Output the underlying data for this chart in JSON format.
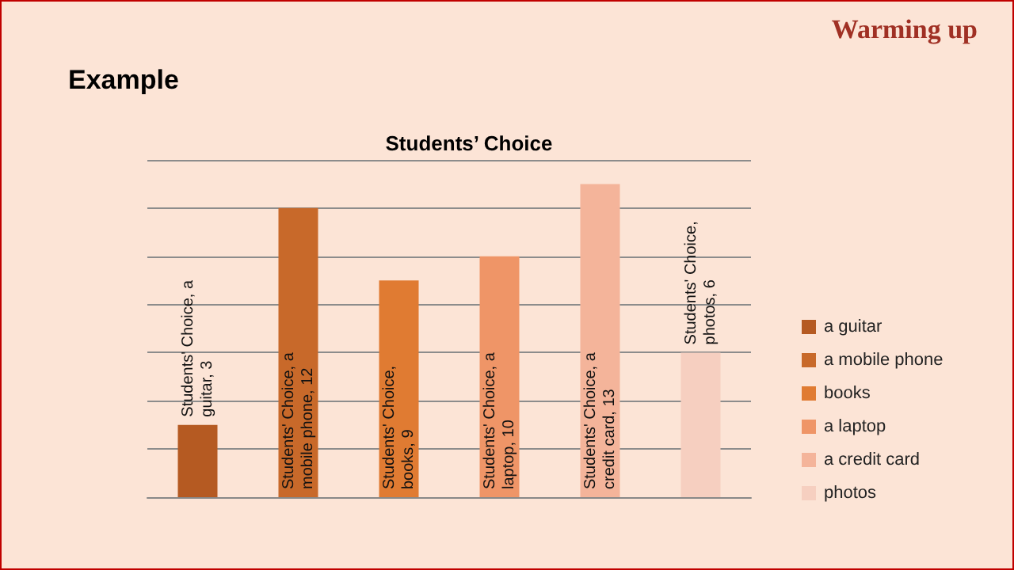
{
  "chart_data": {
    "type": "bar",
    "title": "Students’ Choice",
    "annotations": [
      "Warming up",
      "Example"
    ],
    "categories": [
      null,
      null,
      null,
      null,
      null,
      null
    ],
    "series": [
      {
        "name": "a guitar",
        "color": "#b55a22",
        "values": [
          3,
          null,
          null,
          null,
          null,
          null
        ],
        "value_labels": [
          "Students' Choice, a guitar, 3",
          null,
          null,
          null,
          null,
          null
        ]
      },
      {
        "name": "a mobile phone",
        "color": "#c8692a",
        "values": [
          null,
          12,
          null,
          null,
          null,
          null
        ],
        "value_labels": [
          null,
          "Students' Choice, a mobile phone, 12",
          null,
          null,
          null,
          null
        ]
      },
      {
        "name": "books",
        "color": "#e07b32",
        "values": [
          null,
          null,
          9,
          null,
          null,
          null
        ],
        "value_labels": [
          null,
          null,
          "Students' Choice, books, 9",
          null,
          null,
          null
        ]
      },
      {
        "name": "a laptop",
        "color": "#ef9567",
        "values": [
          null,
          null,
          null,
          10,
          null,
          null
        ],
        "value_labels": [
          null,
          null,
          null,
          "Students' Choice, a laptop, 10",
          null,
          null
        ]
      },
      {
        "name": "a credit card",
        "color": "#f4b49a",
        "values": [
          null,
          null,
          null,
          null,
          13,
          null
        ],
        "value_labels": [
          null,
          null,
          null,
          null,
          "Students' Choice, a credit card, 13",
          null
        ]
      },
      {
        "name": "photos",
        "color": "#f6cfc0",
        "values": [
          null,
          null,
          null,
          null,
          null,
          6
        ],
        "value_labels": [
          null,
          null,
          null,
          null,
          null,
          "Students' Choice, photos, 6"
        ]
      }
    ],
    "stacked": true,
    "ylim": [
      0,
      14
    ],
    "yticks": [
      {
        "value": 0,
        "label": null
      },
      {
        "value": 2,
        "label": null
      },
      {
        "value": 4,
        "label": null
      },
      {
        "value": 6,
        "label": null
      },
      {
        "value": 8,
        "label": null
      },
      {
        "value": 10,
        "label": null
      },
      {
        "value": 12,
        "label": null
      },
      {
        "value": 14,
        "label": null
      }
    ],
    "grid": "y",
    "legend": "right"
  }
}
